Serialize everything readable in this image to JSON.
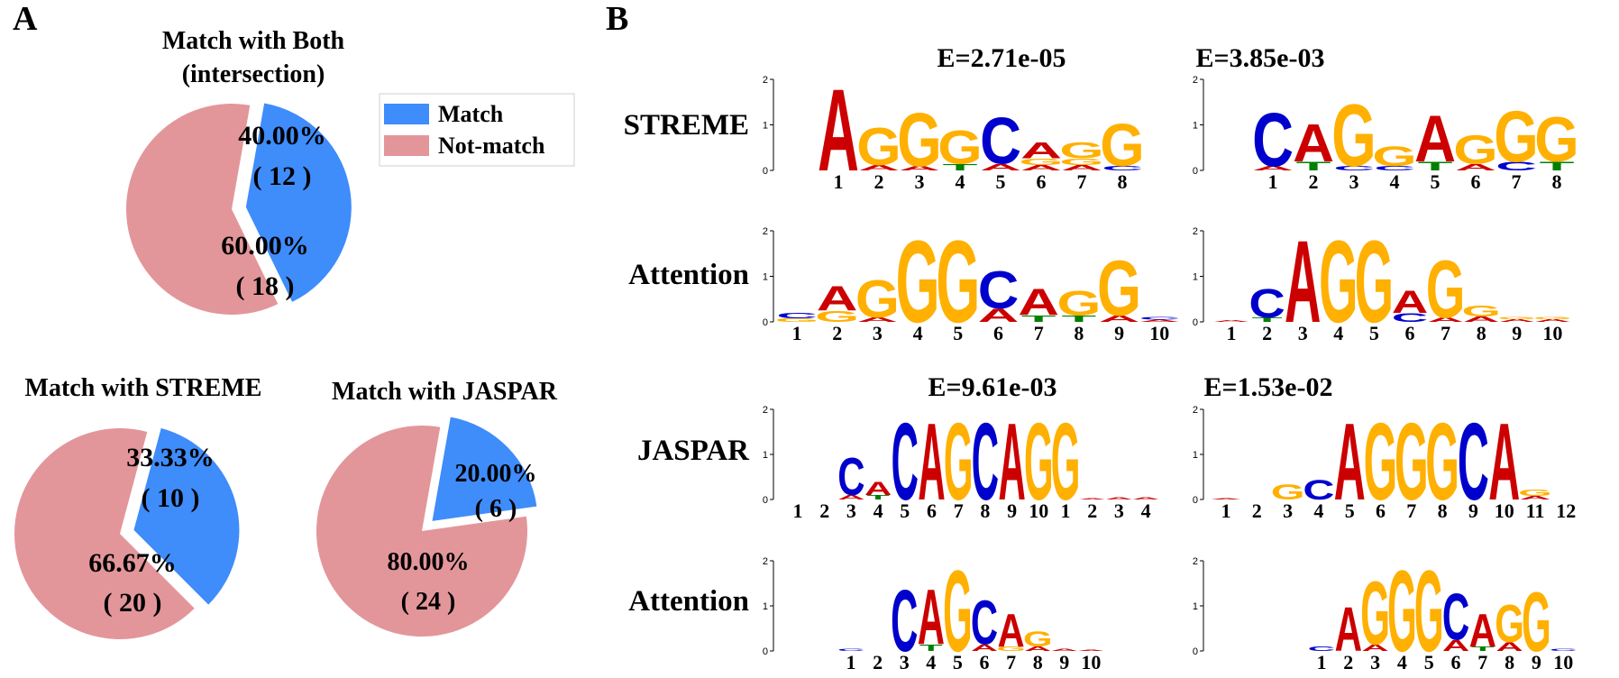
{
  "panel_labels": {
    "a": "A",
    "b": "B"
  },
  "colors": {
    "match": "#3f8cfb",
    "not_match": "#e3969a",
    "A": "#cc0000",
    "C": "#0000cc",
    "G": "#ffb000",
    "T": "#008000"
  },
  "chart_data": [
    {
      "type": "pie",
      "id": "pie_both",
      "title_lines": [
        "Match with Both",
        "(intersection)"
      ],
      "legend": [
        "Match",
        "Not-match"
      ],
      "slices": [
        {
          "name": "Match",
          "percent_label": "40.00%",
          "count_label": "( 12 )",
          "value": 12
        },
        {
          "name": "Not-match",
          "percent_label": "60.00%",
          "count_label": "( 18 )",
          "value": 18
        }
      ]
    },
    {
      "type": "pie",
      "id": "pie_streme",
      "title_lines": [
        "Match with STREME"
      ],
      "slices": [
        {
          "name": "Match",
          "percent_label": "33.33%",
          "count_label": "( 10 )",
          "value": 10
        },
        {
          "name": "Not-match",
          "percent_label": "66.67%",
          "count_label": "( 20 )",
          "value": 20
        }
      ]
    },
    {
      "type": "pie",
      "id": "pie_jaspar",
      "title_lines": [
        "Match with JASPAR"
      ],
      "slices": [
        {
          "name": "Match",
          "percent_label": "20.00%",
          "count_label": "( 6 )",
          "value": 6
        },
        {
          "name": "Not-match",
          "percent_label": "80.00%",
          "count_label": "( 24 )",
          "value": 24
        }
      ]
    },
    {
      "type": "sequence-logo-grid",
      "row_labels": [
        "STREME",
        "Attention",
        "JASPAR",
        "Attention"
      ],
      "evalues": [
        "E=2.71e-05",
        "E=3.85e-03",
        "E=9.61e-03",
        "E=1.53e-02"
      ],
      "ylim": [
        0,
        2
      ],
      "yticks": [
        "0",
        "1",
        "2"
      ],
      "logos": [
        {
          "id": "s1",
          "xticks": [
            "1",
            "2",
            "3",
            "4",
            "5",
            "6",
            "7",
            "8"
          ],
          "columns": [
            [
              [
                "A",
                1.85
              ]
            ],
            [
              [
                "A",
                0.12
              ],
              [
                "G",
                0.85
              ]
            ],
            [
              [
                "A",
                0.1
              ],
              [
                "G",
                1.2
              ]
            ],
            [
              [
                "T",
                0.15
              ],
              [
                "G",
                0.75
              ]
            ],
            [
              [
                "A",
                0.15
              ],
              [
                "C",
                1.05
              ]
            ],
            [
              [
                "A",
                0.12
              ],
              [
                "G",
                0.15
              ],
              [
                "A",
                0.35
              ]
            ],
            [
              [
                "A",
                0.12
              ],
              [
                "G",
                0.15
              ],
              [
                "G",
                0.35
              ]
            ],
            [
              [
                "C",
                0.1
              ],
              [
                "G",
                0.95
              ]
            ]
          ]
        },
        {
          "id": "s2",
          "xticks": [
            "1",
            "2",
            "3",
            "4",
            "5",
            "6",
            "7",
            "8"
          ],
          "columns": [
            [
              [
                "A",
                0.1
              ],
              [
                "C",
                1.2
              ]
            ],
            [
              [
                "T",
                0.2
              ],
              [
                "A",
                0.85
              ]
            ],
            [
              [
                "C",
                0.1
              ],
              [
                "G",
                1.4
              ]
            ],
            [
              [
                "C",
                0.1
              ],
              [
                "G",
                0.45
              ]
            ],
            [
              [
                "T",
                0.2
              ],
              [
                "A",
                1.05
              ]
            ],
            [
              [
                "A",
                0.15
              ],
              [
                "G",
                0.65
              ]
            ],
            [
              [
                "C",
                0.2
              ],
              [
                "G",
                1.15
              ]
            ],
            [
              [
                "T",
                0.2
              ],
              [
                "G",
                1.0
              ]
            ]
          ]
        },
        {
          "id": "a1",
          "xticks": [
            "1",
            "2",
            "3",
            "4",
            "5",
            "6",
            "7",
            "8",
            "9",
            "10"
          ],
          "columns": [
            [
              [
                "G",
                0.08
              ],
              [
                "C",
                0.12
              ]
            ],
            [
              [
                "G",
                0.25
              ],
              [
                "A",
                0.55
              ]
            ],
            [
              [
                "A",
                0.1
              ],
              [
                "G",
                0.85
              ]
            ],
            [
              [
                "G",
                1.85
              ]
            ],
            [
              [
                "G",
                1.85
              ]
            ],
            [
              [
                "A",
                0.3
              ],
              [
                "C",
                0.85
              ]
            ],
            [
              [
                "T",
                0.15
              ],
              [
                "A",
                0.6
              ]
            ],
            [
              [
                "T",
                0.15
              ],
              [
                "G",
                0.55
              ]
            ],
            [
              [
                "A",
                0.15
              ],
              [
                "G",
                1.25
              ]
            ],
            [
              [
                "A",
                0.05
              ],
              [
                "C",
                0.06
              ]
            ]
          ]
        },
        {
          "id": "a2",
          "xticks": [
            "1",
            "2",
            "3",
            "4",
            "5",
            "6",
            "7",
            "8",
            "9",
            "10"
          ],
          "columns": [
            [
              [
                "A",
                0.04
              ]
            ],
            [
              [
                "T",
                0.1
              ],
              [
                "C",
                0.65
              ]
            ],
            [
              [
                "A",
                1.85
              ]
            ],
            [
              [
                "G",
                1.85
              ]
            ],
            [
              [
                "G",
                1.85
              ]
            ],
            [
              [
                "C",
                0.2
              ],
              [
                "A",
                0.5
              ]
            ],
            [
              [
                "A",
                0.1
              ],
              [
                "G",
                1.3
              ]
            ],
            [
              [
                "A",
                0.12
              ],
              [
                "G",
                0.25
              ]
            ],
            [
              [
                "A",
                0.06
              ],
              [
                "G",
                0.05
              ]
            ],
            [
              [
                "A",
                0.06
              ],
              [
                "G",
                0.05
              ]
            ]
          ]
        },
        {
          "id": "j1",
          "xticks": [
            "1",
            "2",
            "3",
            "4",
            "5",
            "6",
            "7",
            "8",
            "9",
            "10",
            "1",
            "2",
            "3",
            "4"
          ],
          "columns": [
            [],
            [],
            [
              [
                "A",
                0.1
              ],
              [
                "C",
                0.85
              ]
            ],
            [
              [
                "T",
                0.1
              ],
              [
                "A",
                0.3
              ]
            ],
            [
              [
                "C",
                1.75
              ]
            ],
            [
              [
                "A",
                1.75
              ]
            ],
            [
              [
                "G",
                1.75
              ]
            ],
            [
              [
                "C",
                1.75
              ]
            ],
            [
              [
                "A",
                1.75
              ]
            ],
            [
              [
                "G",
                1.75
              ]
            ],
            [
              [
                "G",
                1.75
              ]
            ],
            [
              [
                "A",
                0.03
              ]
            ],
            [
              [
                "A",
                0.05
              ]
            ],
            [
              [
                "A",
                0.05
              ]
            ]
          ]
        },
        {
          "id": "j2",
          "xticks": [
            "1",
            "2",
            "3",
            "4",
            "5",
            "6",
            "7",
            "8",
            "9",
            "10",
            "11",
            "12"
          ],
          "columns": [
            [
              [
                "A",
                0.03
              ]
            ],
            [],
            [
              [
                "G",
                0.35
              ]
            ],
            [
              [
                "C",
                0.45
              ]
            ],
            [
              [
                "A",
                1.75
              ]
            ],
            [
              [
                "G",
                1.75
              ]
            ],
            [
              [
                "G",
                1.75
              ]
            ],
            [
              [
                "G",
                1.75
              ]
            ],
            [
              [
                "C",
                1.75
              ]
            ],
            [
              [
                "A",
                1.75
              ]
            ],
            [
              [
                "A",
                0.08
              ],
              [
                "G",
                0.15
              ]
            ],
            []
          ]
        },
        {
          "id": "a3",
          "xticks": [
            "1",
            "2",
            "3",
            "4",
            "5",
            "6",
            "7",
            "8",
            "9",
            "10"
          ],
          "columns": [
            [
              [
                "C",
                0.05
              ]
            ],
            [],
            [
              [
                "C",
                1.4
              ]
            ],
            [
              [
                "T",
                0.15
              ],
              [
                "A",
                1.25
              ]
            ],
            [
              [
                "G",
                1.85
              ]
            ],
            [
              [
                "A",
                0.15
              ],
              [
                "C",
                1.0
              ]
            ],
            [
              [
                "G",
                0.1
              ],
              [
                "A",
                0.75
              ]
            ],
            [
              [
                "A",
                0.1
              ],
              [
                "G",
                0.35
              ]
            ],
            [
              [
                "A",
                0.05
              ]
            ],
            [
              [
                "A",
                0.03
              ]
            ]
          ]
        },
        {
          "id": "a4",
          "xticks": [
            "1",
            "2",
            "3",
            "4",
            "5",
            "6",
            "7",
            "8",
            "9",
            "10"
          ],
          "columns": [
            [
              [
                "C",
                0.1
              ]
            ],
            [
              [
                "A",
                1.0
              ]
            ],
            [
              [
                "A",
                0.15
              ],
              [
                "G",
                1.45
              ]
            ],
            [
              [
                "G",
                1.85
              ]
            ],
            [
              [
                "G",
                1.85
              ]
            ],
            [
              [
                "A",
                0.25
              ],
              [
                "C",
                1.05
              ]
            ],
            [
              [
                "T",
                0.1
              ],
              [
                "A",
                0.75
              ]
            ],
            [
              [
                "A",
                0.2
              ],
              [
                "G",
                0.85
              ]
            ],
            [
              [
                "G",
                1.35
              ]
            ],
            [
              [
                "C",
                0.05
              ]
            ]
          ]
        }
      ]
    }
  ]
}
